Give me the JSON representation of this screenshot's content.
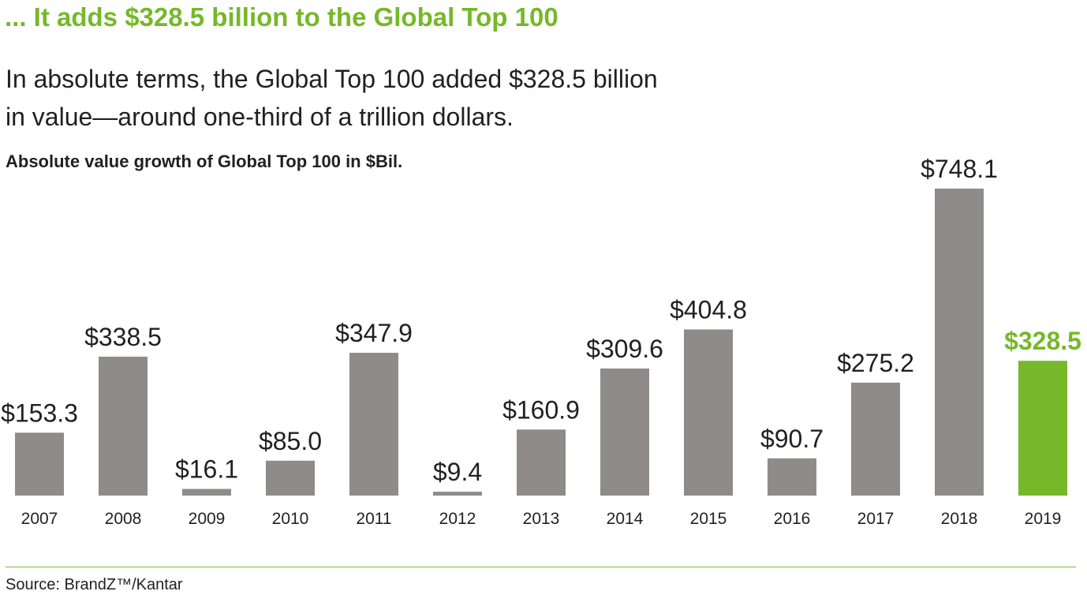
{
  "headline": "... It adds $328.5 billion to the Global Top 100",
  "intro": "In absolute terms, the Global Top 100 added $328.5 billion in value—around one-third of a trillion dollars.",
  "source": "Source: BrandZ™/Kantar",
  "colors": {
    "accent": "#76b82a",
    "bar": "#8f8b8a",
    "text": "#231f20"
  },
  "chart_data": {
    "type": "bar",
    "title": "Absolute value growth of Global Top 100 in $Bil.",
    "categories": [
      "2007",
      "2008",
      "2009",
      "2010",
      "2011",
      "2012",
      "2013",
      "2014",
      "2015",
      "2016",
      "2017",
      "2018",
      "2019"
    ],
    "values": [
      153.3,
      338.5,
      16.1,
      85.0,
      347.9,
      9.4,
      160.9,
      309.6,
      404.8,
      90.7,
      275.2,
      748.1,
      328.5
    ],
    "data_labels": [
      "$153.3",
      "$338.5",
      "$16.1",
      "$85.0",
      "$347.9",
      "$9.4",
      "$160.9",
      "$309.6",
      "$404.8",
      "$90.7",
      "$275.2",
      "$748.1",
      "$328.5"
    ],
    "highlight_category": "2019",
    "xlabel": "",
    "ylabel": "",
    "ylim": [
      0,
      748.1
    ],
    "grid": false,
    "legend": "none"
  }
}
